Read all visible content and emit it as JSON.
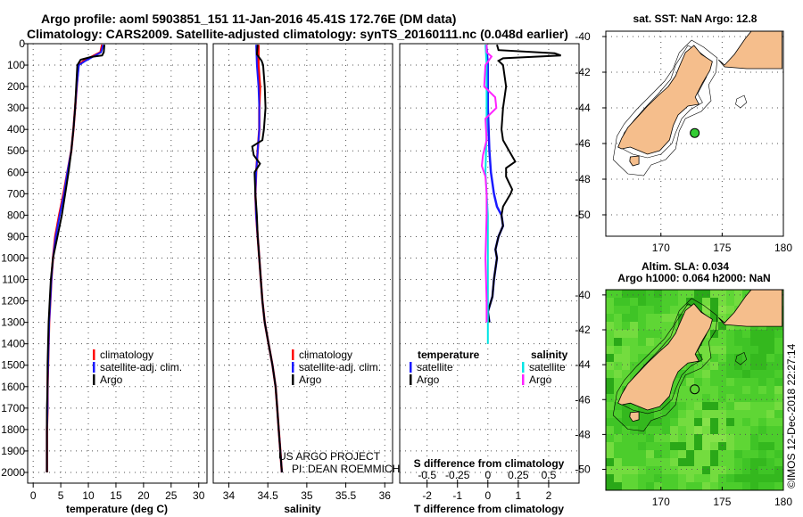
{
  "title": {
    "line1": "Argo profile: aoml 5903851_151 11-Jan-2016 45.41S 172.76E (DM data)",
    "line2": "Climatology: CARS2009. Satellite-adjusted climatology: synTS_20160111.nc (0.048d earlier)"
  },
  "colors": {
    "climatology": "#ff0000",
    "satellite": "#1a1aff",
    "argo": "#000000",
    "satellite_salinity": "#00e5e5",
    "argo_salinity_diff": "#ff22ff",
    "land": "#f5be8c",
    "marker": "#33cc33"
  },
  "credit": {
    "line1": "US ARGO PROJECT",
    "line2": "PI: DEAN ROEMMICH"
  },
  "timestamp": "©IMOS 12-Dec-2018 22:27:14",
  "chart_data": [
    {
      "type": "line",
      "id": "temperature",
      "xlabel": "temperature (deg C)",
      "ylabel": "",
      "xlim": [
        -1,
        31.5
      ],
      "ylim": [
        0,
        2050
      ],
      "y_inverted": true,
      "x_ticks": [
        "0",
        "5",
        "10",
        "15",
        "20",
        "25",
        "30"
      ],
      "y_ticks": [
        "0",
        "100",
        "200",
        "300",
        "400",
        "500",
        "600",
        "700",
        "800",
        "900",
        "1000",
        "1100",
        "1200",
        "1300",
        "1400",
        "1500",
        "1600",
        "1700",
        "1800",
        "1900",
        "2000"
      ],
      "legend": [
        "climatology",
        "satellite-adj. clim.",
        "Argo"
      ],
      "series": [
        {
          "name": "climatology",
          "points": [
            [
              12.5,
              5
            ],
            [
              12.2,
              40
            ],
            [
              9.2,
              80
            ],
            [
              8.2,
              100
            ],
            [
              7.9,
              200
            ],
            [
              7.6,
              300
            ],
            [
              7.3,
              400
            ],
            [
              6.9,
              500
            ],
            [
              6.2,
              600
            ],
            [
              5.5,
              700
            ],
            [
              4.7,
              800
            ],
            [
              4.0,
              900
            ],
            [
              3.6,
              1000
            ],
            [
              3.3,
              1100
            ],
            [
              3.1,
              1200
            ],
            [
              2.9,
              1300
            ],
            [
              2.8,
              1400
            ],
            [
              2.7,
              1500
            ],
            [
              2.6,
              1600
            ],
            [
              2.6,
              1700
            ],
            [
              2.5,
              1800
            ],
            [
              2.5,
              1900
            ],
            [
              2.5,
              2000
            ]
          ]
        },
        {
          "name": "satellite-adj. clim.",
          "points": [
            [
              12.7,
              5
            ],
            [
              12.3,
              40
            ],
            [
              9.5,
              80
            ],
            [
              8.3,
              100
            ],
            [
              7.9,
              200
            ],
            [
              7.6,
              300
            ],
            [
              7.3,
              400
            ],
            [
              6.9,
              500
            ],
            [
              6.2,
              600
            ],
            [
              5.6,
              700
            ],
            [
              4.8,
              800
            ],
            [
              4.1,
              900
            ],
            [
              3.6,
              1000
            ],
            [
              3.3,
              1100
            ],
            [
              3.1,
              1200
            ],
            [
              2.9,
              1300
            ],
            [
              2.8,
              1400
            ],
            [
              2.7,
              1500
            ],
            [
              2.6,
              1600
            ],
            [
              2.6,
              1700
            ],
            [
              2.5,
              1800
            ],
            [
              2.5,
              1900
            ],
            [
              2.5,
              2000
            ]
          ]
        },
        {
          "name": "Argo",
          "points": [
            [
              12.9,
              5
            ],
            [
              12.8,
              40
            ],
            [
              12.5,
              55
            ],
            [
              10.5,
              62
            ],
            [
              8.6,
              75
            ],
            [
              8.0,
              100
            ],
            [
              7.8,
              200
            ],
            [
              7.6,
              300
            ],
            [
              7.3,
              400
            ],
            [
              6.9,
              500
            ],
            [
              6.4,
              600
            ],
            [
              5.8,
              700
            ],
            [
              5.2,
              800
            ],
            [
              4.4,
              900
            ],
            [
              3.6,
              1000
            ],
            [
              3.2,
              1100
            ],
            [
              3.0,
              1200
            ],
            [
              2.8,
              1300
            ],
            [
              2.7,
              1400
            ],
            [
              2.6,
              1500
            ],
            [
              2.6,
              1600
            ],
            [
              2.5,
              1700
            ],
            [
              2.5,
              1800
            ],
            [
              2.5,
              1900
            ],
            [
              2.5,
              2000
            ]
          ]
        }
      ]
    },
    {
      "type": "line",
      "id": "salinity",
      "xlabel": "salinity",
      "ylabel": "",
      "xlim": [
        33.8,
        36.1
      ],
      "ylim": [
        0,
        2050
      ],
      "y_inverted": true,
      "x_ticks": [
        "34",
        "34.5",
        "35",
        "35.5",
        "36"
      ],
      "legend": [
        "climatology",
        "satellite-adj. clim.",
        "Argo"
      ],
      "series": [
        {
          "name": "climatology",
          "points": [
            [
              34.38,
              5
            ],
            [
              34.38,
              100
            ],
            [
              34.4,
              200
            ],
            [
              34.39,
              300
            ],
            [
              34.39,
              400
            ],
            [
              34.37,
              500
            ],
            [
              34.35,
              600
            ],
            [
              34.34,
              700
            ],
            [
              34.35,
              800
            ],
            [
              34.37,
              900
            ],
            [
              34.39,
              1000
            ],
            [
              34.41,
              1100
            ],
            [
              34.43,
              1200
            ],
            [
              34.46,
              1300
            ],
            [
              34.51,
              1400
            ],
            [
              34.56,
              1500
            ],
            [
              34.6,
              1600
            ],
            [
              34.62,
              1700
            ],
            [
              34.64,
              1800
            ],
            [
              34.66,
              1900
            ],
            [
              34.68,
              2000
            ]
          ]
        },
        {
          "name": "satellite-adj. clim.",
          "points": [
            [
              34.35,
              5
            ],
            [
              34.36,
              100
            ],
            [
              34.38,
              200
            ],
            [
              34.39,
              300
            ],
            [
              34.39,
              400
            ],
            [
              34.37,
              500
            ],
            [
              34.35,
              600
            ],
            [
              34.34,
              700
            ],
            [
              34.35,
              800
            ],
            [
              34.37,
              900
            ],
            [
              34.39,
              1000
            ],
            [
              34.41,
              1100
            ],
            [
              34.43,
              1200
            ],
            [
              34.46,
              1300
            ],
            [
              34.51,
              1400
            ],
            [
              34.56,
              1500
            ],
            [
              34.6,
              1600
            ],
            [
              34.62,
              1700
            ],
            [
              34.64,
              1800
            ],
            [
              34.66,
              1900
            ],
            [
              34.68,
              2000
            ]
          ]
        },
        {
          "name": "Argo",
          "points": [
            [
              34.37,
              5
            ],
            [
              34.36,
              50
            ],
            [
              34.42,
              80
            ],
            [
              34.44,
              100
            ],
            [
              34.46,
              200
            ],
            [
              34.47,
              300
            ],
            [
              34.45,
              400
            ],
            [
              34.43,
              450
            ],
            [
              34.3,
              480
            ],
            [
              34.32,
              520
            ],
            [
              34.4,
              560
            ],
            [
              34.33,
              600
            ],
            [
              34.34,
              700
            ],
            [
              34.36,
              800
            ],
            [
              34.37,
              900
            ],
            [
              34.39,
              1000
            ],
            [
              34.41,
              1100
            ],
            [
              34.43,
              1200
            ],
            [
              34.46,
              1300
            ],
            [
              34.51,
              1400
            ],
            [
              34.56,
              1500
            ],
            [
              34.6,
              1600
            ],
            [
              34.62,
              1700
            ],
            [
              34.64,
              1800
            ],
            [
              34.66,
              1900
            ],
            [
              34.68,
              2000
            ]
          ]
        }
      ]
    },
    {
      "type": "line",
      "id": "differences",
      "xlabel": "T difference from climatology",
      "xlabel_top": "S difference from climatology",
      "xlim": [
        -2.9,
        3.0
      ],
      "ylim": [
        0,
        2050
      ],
      "y_inverted": true,
      "x_ticks": [
        "-2",
        "-1",
        "0",
        "1",
        "2"
      ],
      "s_ticks": [
        "-0.5",
        "-0.25",
        "0",
        "0.25",
        "0.5"
      ],
      "legend_left_title": "temperature",
      "legend_right_title": "salinity",
      "legend_left": [
        "satellite",
        "Argo"
      ],
      "legend_right": [
        "satellite",
        "Argo"
      ],
      "series": [
        {
          "name": "temperature satellite",
          "points": [
            [
              -0.05,
              5
            ],
            [
              0.0,
              100
            ],
            [
              0.0,
              300
            ],
            [
              0.05,
              500
            ],
            [
              0.1,
              600
            ],
            [
              0.2,
              700
            ],
            [
              0.3,
              760
            ],
            [
              0.45,
              800
            ],
            [
              0.5,
              850
            ],
            [
              0.35,
              900
            ],
            [
              0.25,
              960
            ],
            [
              0.3,
              1000
            ],
            [
              0.2,
              1100
            ],
            [
              0.15,
              1180
            ],
            [
              0.0,
              1250
            ],
            [
              0.05,
              1300
            ]
          ]
        },
        {
          "name": "temperature Argo",
          "points": [
            [
              0.3,
              5
            ],
            [
              0.35,
              30
            ],
            [
              2.2,
              45
            ],
            [
              2.4,
              55
            ],
            [
              0.5,
              68
            ],
            [
              0.35,
              80
            ],
            [
              0.5,
              100
            ],
            [
              0.6,
              200
            ],
            [
              0.5,
              300
            ],
            [
              0.45,
              400
            ],
            [
              0.5,
              450
            ],
            [
              0.7,
              500
            ],
            [
              0.9,
              550
            ],
            [
              0.6,
              580
            ],
            [
              0.6,
              620
            ],
            [
              0.7,
              650
            ],
            [
              0.8,
              680
            ],
            [
              0.75,
              700
            ],
            [
              0.5,
              760
            ],
            [
              0.45,
              800
            ],
            [
              0.5,
              850
            ],
            [
              0.35,
              900
            ],
            [
              0.25,
              960
            ],
            [
              0.3,
              1000
            ],
            [
              0.2,
              1100
            ],
            [
              0.15,
              1180
            ],
            [
              0.0,
              1250
            ],
            [
              0.05,
              1300
            ]
          ]
        },
        {
          "name": "salinity satellite",
          "points": [
            [
              -0.02,
              5
            ],
            [
              -0.01,
              100
            ],
            [
              -0.01,
              400
            ],
            [
              -0.02,
              600
            ],
            [
              0.0,
              800
            ],
            [
              0.0,
              1000
            ],
            [
              0.0,
              1200
            ],
            [
              0.0,
              1400
            ]
          ]
        },
        {
          "name": "salinity Argo",
          "points": [
            [
              -0.01,
              5
            ],
            [
              -0.01,
              40
            ],
            [
              0.03,
              60
            ],
            [
              -0.02,
              100
            ],
            [
              -0.03,
              200
            ],
            [
              0.06,
              250
            ],
            [
              0.07,
              300
            ],
            [
              -0.02,
              350
            ],
            [
              -0.01,
              450
            ],
            [
              -0.04,
              520
            ],
            [
              -0.05,
              570
            ],
            [
              -0.02,
              620
            ],
            [
              -0.01,
              700
            ],
            [
              -0.01,
              800
            ],
            [
              -0.02,
              1000
            ],
            [
              -0.01,
              1200
            ],
            [
              -0.01,
              1300
            ]
          ]
        }
      ]
    },
    {
      "type": "map",
      "id": "sst_map",
      "title": "sat. SST: NaN Argo: 12.8",
      "xlim": [
        165.5,
        180
      ],
      "ylim": [
        -51.2,
        -39.7
      ],
      "x_ticks": [
        "170",
        "175",
        "180"
      ],
      "y_ticks": [
        "-40",
        "-42",
        "-44",
        "-46",
        "-48",
        "-50"
      ],
      "marker": {
        "lon": 172.76,
        "lat": -45.41
      }
    },
    {
      "type": "map",
      "id": "sla_map",
      "title_line1": "Altim. SLA: 0.034",
      "title_line2": "Argo h1000: 0.064 h2000: NaN",
      "xlim": [
        165.5,
        180
      ],
      "ylim": [
        -51.2,
        -39.7
      ],
      "x_ticks": [
        "170",
        "175",
        "180"
      ],
      "y_ticks": [
        "-40",
        "-42",
        "-44",
        "-46",
        "-48",
        "-50"
      ],
      "marker": {
        "lon": 172.76,
        "lat": -45.41
      }
    }
  ]
}
